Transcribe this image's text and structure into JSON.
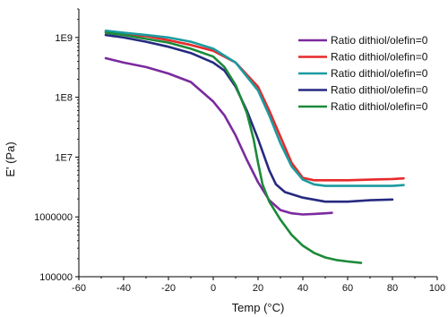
{
  "chart_data": {
    "type": "line",
    "title": "",
    "xlabel": "Temp (°C)",
    "ylabel": "E' (Pa)",
    "xlim": [
      -60,
      100
    ],
    "ylim": [
      100000,
      3000000000
    ],
    "yscale": "log",
    "grid": false,
    "legend_position": "top-right",
    "x_ticks": [
      -60,
      -40,
      -20,
      0,
      20,
      40,
      60,
      80,
      100
    ],
    "x_tick_labels": [
      "-60",
      "-40",
      "-20",
      "0",
      "20",
      "40",
      "60",
      "80",
      "100"
    ],
    "y_ticks": [
      100000,
      1000000,
      10000000,
      100000000,
      1000000000
    ],
    "y_tick_labels": [
      "100000",
      "1000000",
      "1E7",
      "1E8",
      "1E9"
    ],
    "series": [
      {
        "name": "Ratio dithiol/olefin=0",
        "color": "#7b2a9e",
        "points": [
          [
            -48,
            450000000
          ],
          [
            -40,
            380000000
          ],
          [
            -30,
            320000000
          ],
          [
            -20,
            250000000
          ],
          [
            -10,
            180000000
          ],
          [
            0,
            85000000
          ],
          [
            5,
            50000000
          ],
          [
            10,
            23000000
          ],
          [
            15,
            9000000
          ],
          [
            20,
            3800000
          ],
          [
            25,
            1900000
          ],
          [
            30,
            1300000
          ],
          [
            35,
            1150000
          ],
          [
            40,
            1100000
          ],
          [
            45,
            1120000
          ],
          [
            50,
            1150000
          ],
          [
            53,
            1170000
          ]
        ]
      },
      {
        "name": "Ratio dithiol/olefin=0",
        "color": "#e8292a",
        "points": [
          [
            -48,
            1250000000
          ],
          [
            -40,
            1150000000
          ],
          [
            -30,
            1050000000
          ],
          [
            -20,
            900000000
          ],
          [
            -10,
            750000000
          ],
          [
            0,
            600000000
          ],
          [
            10,
            380000000
          ],
          [
            20,
            150000000
          ],
          [
            25,
            60000000
          ],
          [
            30,
            22000000
          ],
          [
            35,
            8000000
          ],
          [
            40,
            4500000
          ],
          [
            45,
            4100000
          ],
          [
            50,
            4100000
          ],
          [
            60,
            4100000
          ],
          [
            70,
            4200000
          ],
          [
            80,
            4300000
          ],
          [
            85,
            4400000
          ]
        ]
      },
      {
        "name": "Ratio dithiol/olefin=0",
        "color": "#1a9ba0",
        "points": [
          [
            -48,
            1300000000
          ],
          [
            -40,
            1200000000
          ],
          [
            -30,
            1100000000
          ],
          [
            -20,
            1000000000
          ],
          [
            -10,
            850000000
          ],
          [
            0,
            650000000
          ],
          [
            10,
            380000000
          ],
          [
            20,
            130000000
          ],
          [
            25,
            50000000
          ],
          [
            30,
            17000000
          ],
          [
            35,
            7000000
          ],
          [
            40,
            4200000
          ],
          [
            45,
            3500000
          ],
          [
            50,
            3300000
          ],
          [
            60,
            3300000
          ],
          [
            70,
            3300000
          ],
          [
            80,
            3300000
          ],
          [
            85,
            3400000
          ]
        ]
      },
      {
        "name": "Ratio dithiol/olefin=0",
        "color": "#262a80",
        "points": [
          [
            -48,
            1100000000
          ],
          [
            -40,
            1000000000
          ],
          [
            -30,
            850000000
          ],
          [
            -20,
            700000000
          ],
          [
            -10,
            550000000
          ],
          [
            0,
            380000000
          ],
          [
            5,
            280000000
          ],
          [
            10,
            150000000
          ],
          [
            15,
            60000000
          ],
          [
            20,
            20000000
          ],
          [
            25,
            6000000
          ],
          [
            28,
            3500000
          ],
          [
            32,
            2600000
          ],
          [
            40,
            2100000
          ],
          [
            50,
            1800000
          ],
          [
            60,
            1800000
          ],
          [
            70,
            1900000
          ],
          [
            80,
            1950000
          ]
        ]
      },
      {
        "name": "Ratio dithiol/olefin=0",
        "color": "#1c8a3a",
        "points": [
          [
            -48,
            1200000000
          ],
          [
            -40,
            1100000000
          ],
          [
            -30,
            950000000
          ],
          [
            -20,
            820000000
          ],
          [
            -10,
            650000000
          ],
          [
            0,
            480000000
          ],
          [
            5,
            320000000
          ],
          [
            10,
            160000000
          ],
          [
            15,
            55000000
          ],
          [
            18,
            20000000
          ],
          [
            20,
            8000000
          ],
          [
            22,
            3500000
          ],
          [
            25,
            1800000
          ],
          [
            30,
            900000
          ],
          [
            35,
            500000
          ],
          [
            40,
            330000
          ],
          [
            45,
            250000
          ],
          [
            50,
            210000
          ],
          [
            55,
            190000
          ],
          [
            60,
            180000
          ],
          [
            66,
            170000
          ]
        ]
      }
    ]
  }
}
